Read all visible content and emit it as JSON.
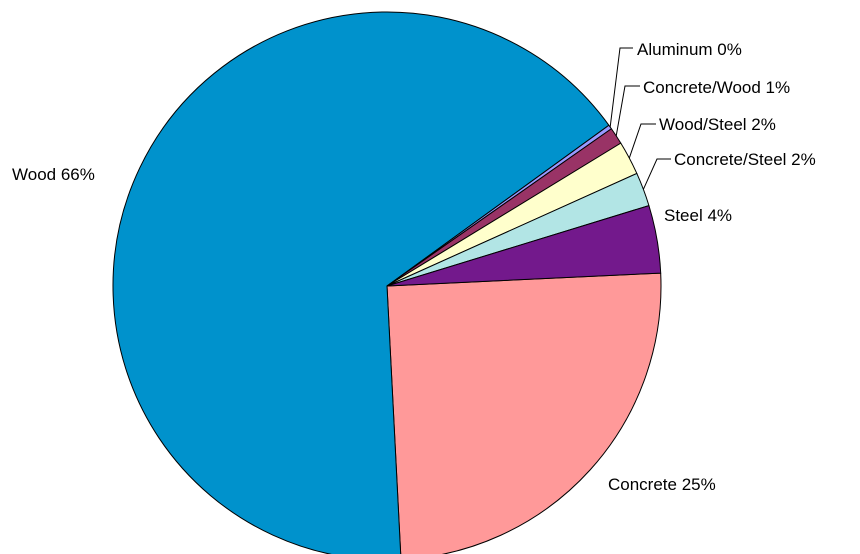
{
  "chart_data": {
    "type": "pie",
    "title": "",
    "slices": [
      {
        "label": "Concrete",
        "value": 25,
        "color": "#ff9999"
      },
      {
        "label": "Wood",
        "value": 66,
        "color": "#0092cc"
      },
      {
        "label": "Aluminum",
        "value": 0,
        "color": "#9999ff"
      },
      {
        "label": "Concrete/Wood",
        "value": 1,
        "color": "#993366"
      },
      {
        "label": "Wood/Steel",
        "value": 2,
        "color": "#ffffcc"
      },
      {
        "label": "Concrete/Steel",
        "value": 2,
        "color": "#b2e5e5"
      },
      {
        "label": "Steel",
        "value": 4,
        "color": "#73198c"
      }
    ],
    "data_labels": [
      "Concrete 25%",
      "Wood 66%",
      "Aluminum 0%",
      "Concrete/Wood 1%",
      "Wood/Steel 2%",
      "Concrete/Steel 2%",
      "Steel 4%"
    ],
    "legend": "none",
    "label_style": "category and percent beside each slice, small slices with leader lines"
  }
}
